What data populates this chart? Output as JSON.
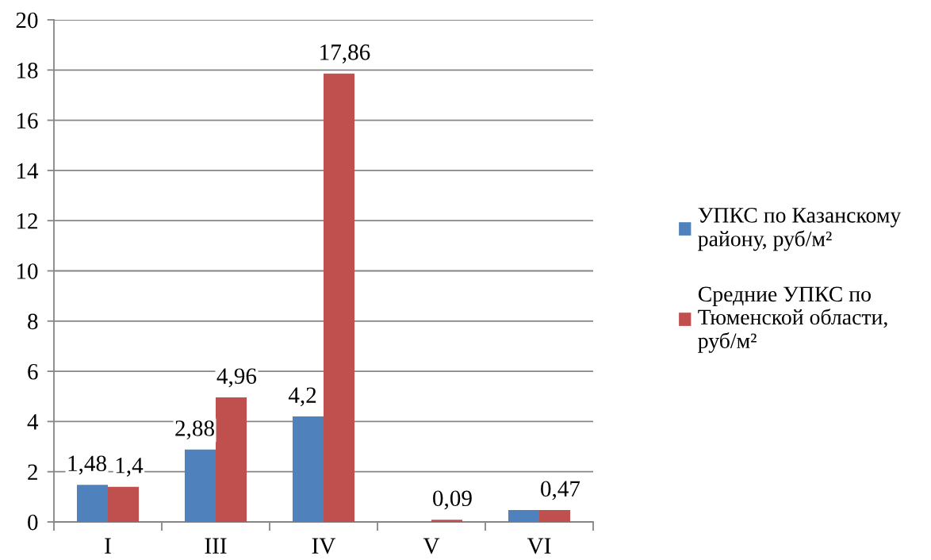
{
  "chart_data": {
    "type": "bar",
    "categories": [
      "I",
      "III",
      "IV",
      "V",
      "VI"
    ],
    "series": [
      {
        "name": "УПКС по Казанскому району, руб/м²",
        "color": "#4f81bd",
        "values": [
          1.48,
          2.88,
          4.2,
          null,
          0.47
        ],
        "value_labels": [
          "1,48",
          "2,88",
          "4,2",
          null,
          null
        ]
      },
      {
        "name": "Средние УПКС по Тюменской области, руб/м²",
        "color": "#c0504d",
        "values": [
          1.4,
          4.96,
          17.86,
          0.09,
          0.47
        ],
        "value_labels": [
          "1,4",
          "4,96",
          "17,86",
          "0,09",
          "0,47"
        ]
      }
    ],
    "ylim": [
      0,
      20
    ],
    "yticks": [
      0,
      2,
      4,
      6,
      8,
      10,
      12,
      14,
      16,
      18,
      20
    ],
    "grid": "y",
    "legend": "right"
  }
}
